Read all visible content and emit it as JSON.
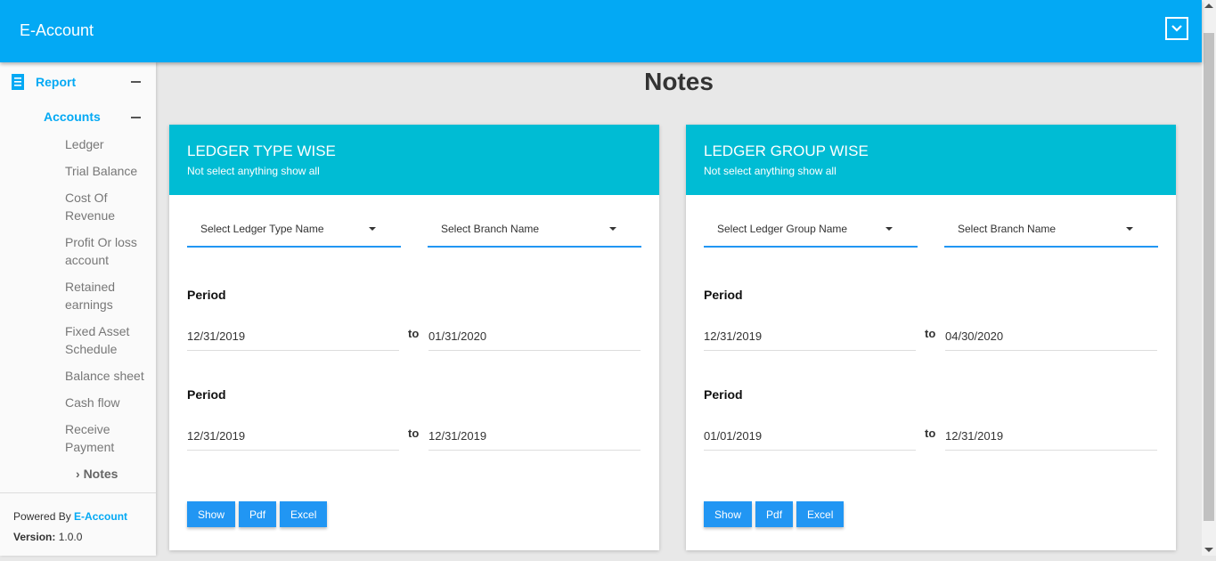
{
  "header": {
    "brand": "E-Account"
  },
  "sidebar": {
    "report": "Report",
    "accounts": "Accounts",
    "items": [
      "Ledger",
      "Trial Balance",
      "Cost Of Revenue",
      "Profit Or loss account",
      "Retained earnings",
      "Fixed Asset Schedule",
      "Balance sheet",
      "Cash flow",
      "Receive Payment"
    ],
    "active": "Notes",
    "footer": {
      "powered": "Powered By ",
      "brand": "E-Account",
      "version_label": "Version:",
      "version": " 1.0.0"
    }
  },
  "page": {
    "title": "Notes"
  },
  "cards": [
    {
      "title": "LEDGER TYPE WISE",
      "subtitle": "Not select anything show all",
      "select1": "Select Ledger Type Name",
      "select2": "Select Branch Name",
      "period_label": "Period",
      "to": "to",
      "p1_from": "12/31/2019",
      "p1_to": "01/31/2020",
      "p2_from": "12/31/2019",
      "p2_to": "12/31/2019",
      "show": "Show",
      "pdf": "Pdf",
      "excel": "Excel"
    },
    {
      "title": "LEDGER GROUP WISE",
      "subtitle": "Not select anything show all",
      "select1": "Select Ledger Group Name",
      "select2": "Select Branch Name",
      "period_label": "Period",
      "to": "to",
      "p1_from": "12/31/2019",
      "p1_to": "04/30/2020",
      "p2_from": "01/01/2019",
      "p2_to": "12/31/2019",
      "show": "Show",
      "pdf": "Pdf",
      "excel": "Excel"
    }
  ]
}
